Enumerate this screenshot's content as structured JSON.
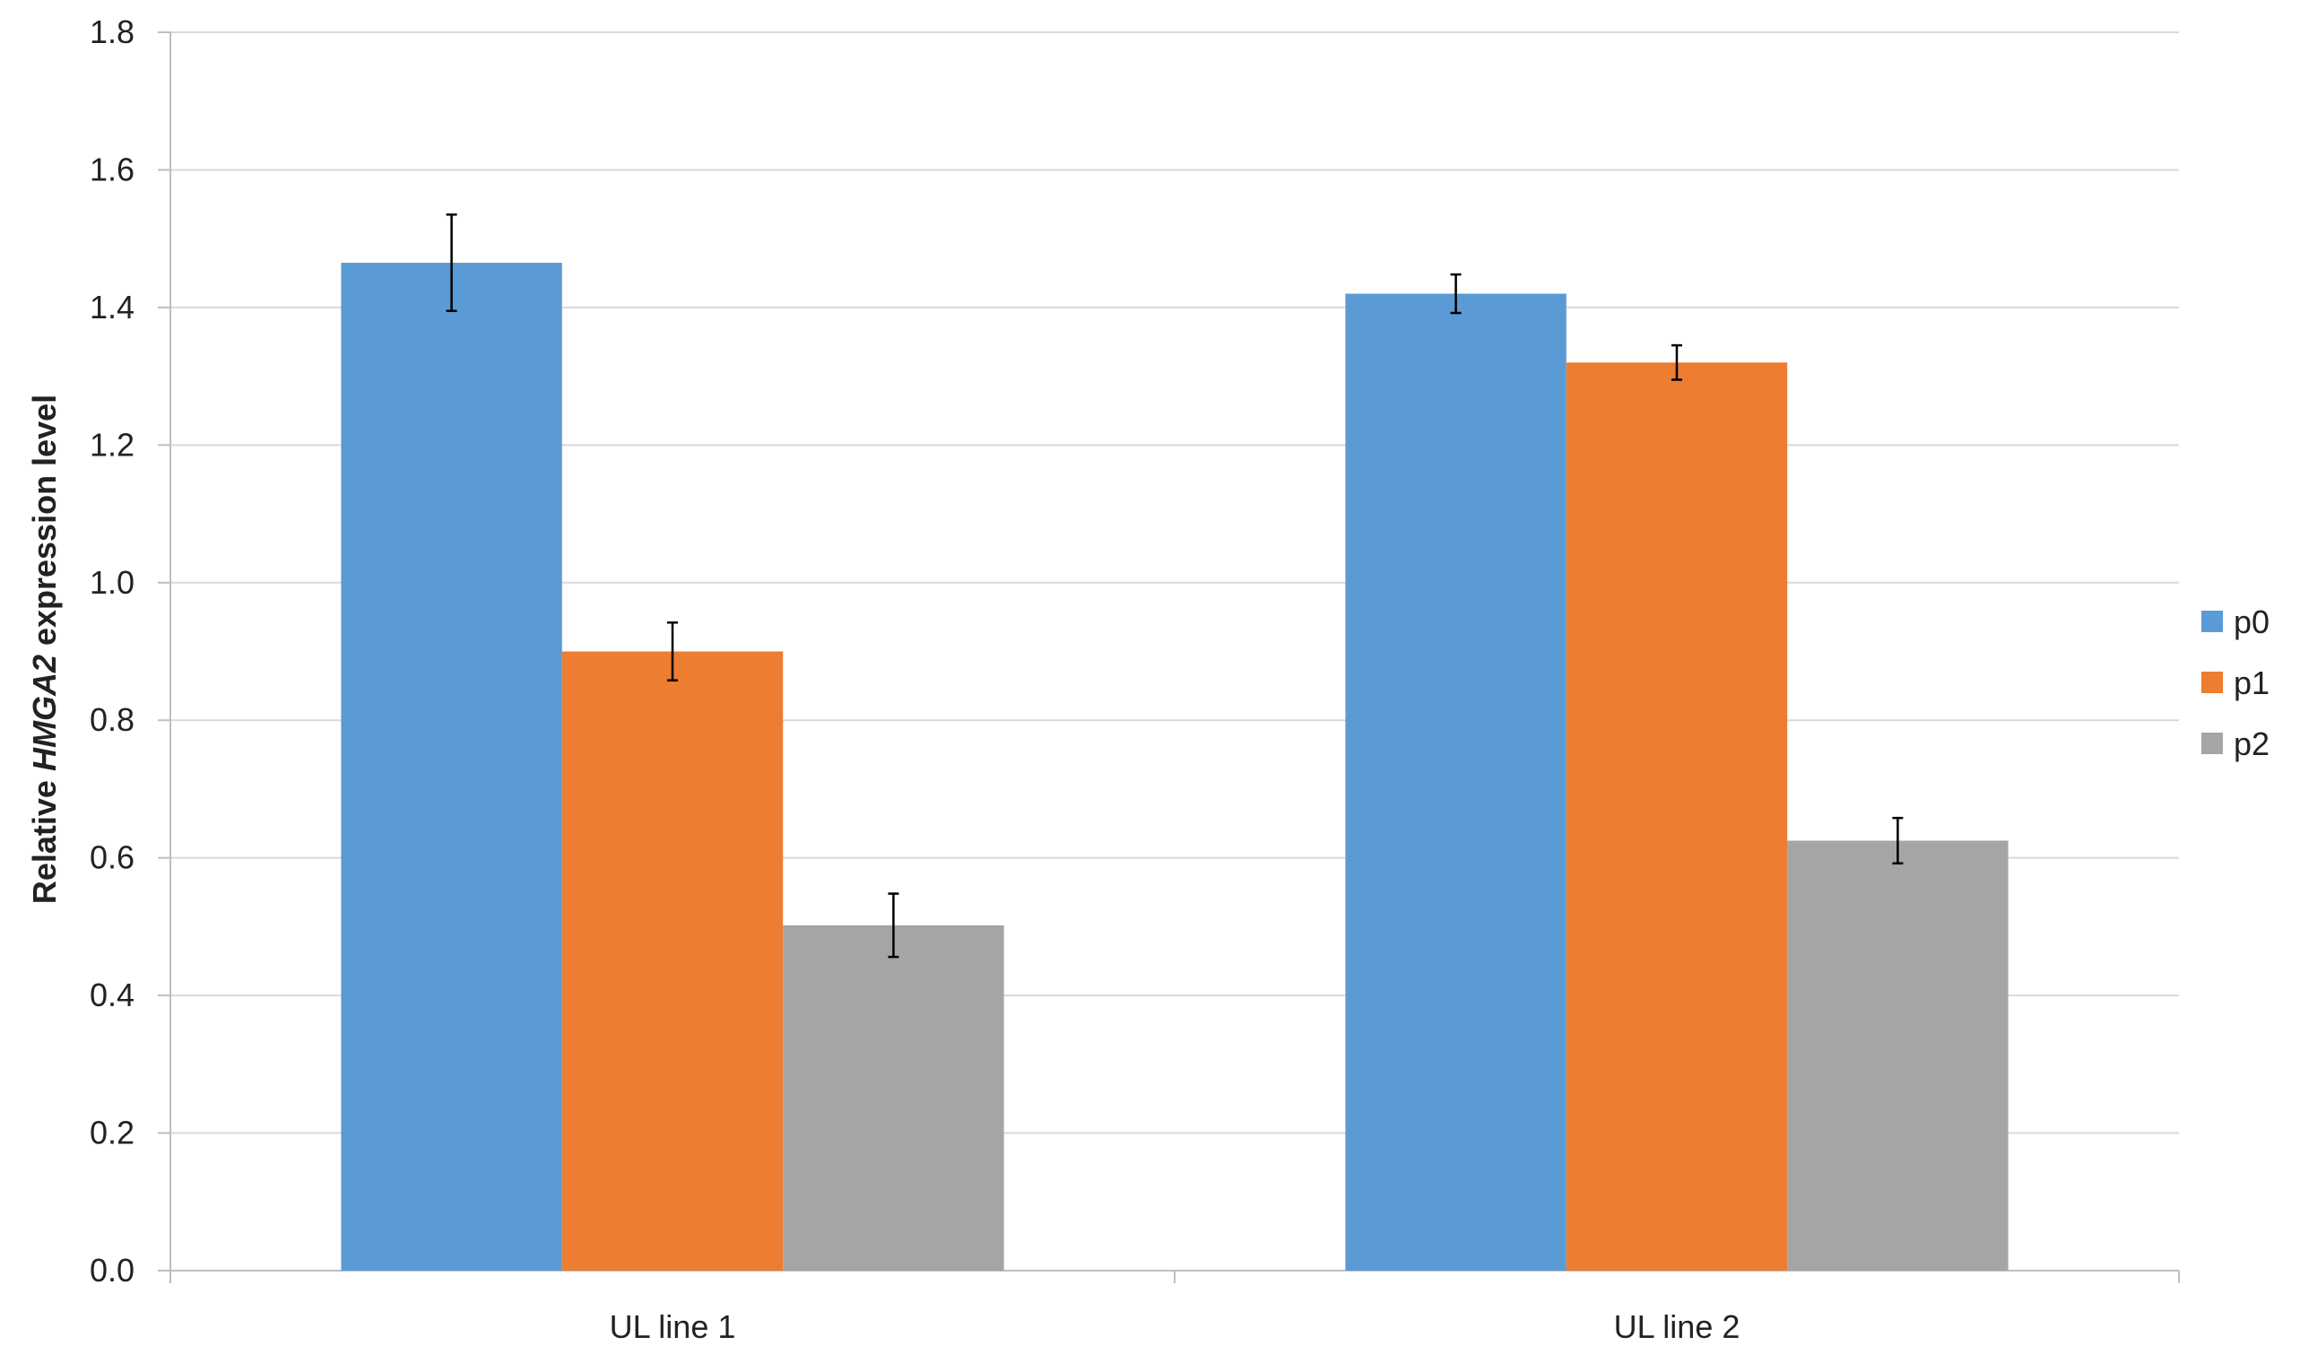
{
  "chart_data": {
    "type": "bar",
    "categories": [
      "UL line 1",
      "UL line 2"
    ],
    "series": [
      {
        "name": "p0",
        "color": "#5B9BD5",
        "values": [
          1.465,
          1.42
        ],
        "errors": [
          0.07,
          0.028
        ]
      },
      {
        "name": "p1",
        "color": "#ED7D31",
        "values": [
          0.9,
          1.32
        ],
        "errors": [
          0.042,
          0.025
        ]
      },
      {
        "name": "p2",
        "color": "#A5A5A5",
        "values": [
          0.502,
          0.625
        ],
        "errors": [
          0.046,
          0.033
        ]
      }
    ],
    "ylabel_prefix": "Relative ",
    "ylabel_gene": "HMGA2",
    "ylabel_suffix": " expression level",
    "xlabel": "",
    "ylim": [
      0,
      1.8
    ],
    "yticks": [
      "0.0",
      "0.2",
      "0.4",
      "0.6",
      "0.8",
      "1.0",
      "1.2",
      "1.4",
      "1.6",
      "1.8"
    ],
    "grid": true,
    "legend_position": "right",
    "gridline_color": "#D9D9D9",
    "axis_color": "#BFBFBF",
    "errorbar_color": "#000000"
  }
}
